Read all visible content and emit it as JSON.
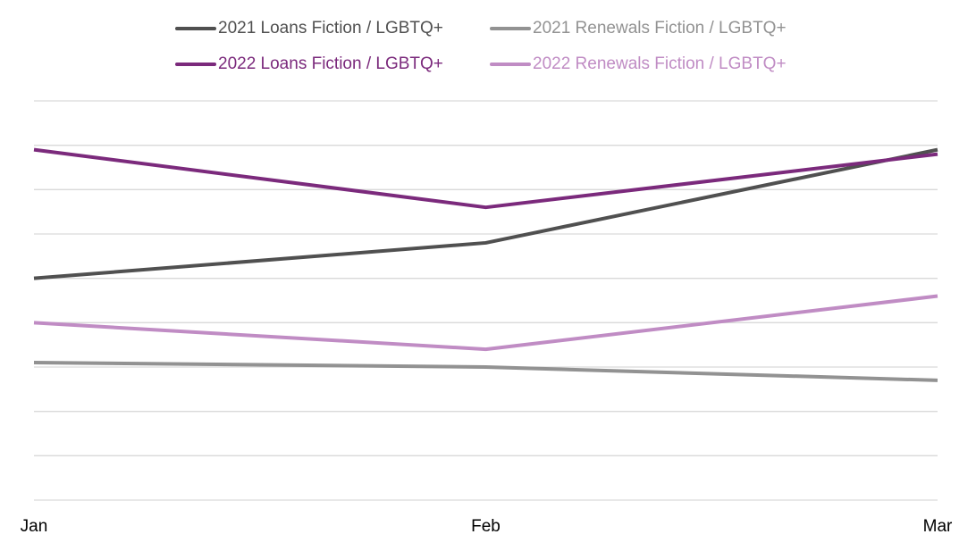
{
  "chart_data": {
    "type": "line",
    "categories": [
      "Jan",
      "Feb",
      "Mar"
    ],
    "series": [
      {
        "name": "2021 Loans Fiction / LGBTQ+",
        "color": "#505050",
        "values": [
          5.0,
          5.8,
          7.9
        ]
      },
      {
        "name": "2021 Renewals Fiction / LGBTQ+",
        "color": "#929292",
        "values": [
          3.1,
          3.0,
          2.7
        ]
      },
      {
        "name": "2022 Loans Fiction / LGBTQ+",
        "color": "#7b2a7c",
        "values": [
          7.9,
          6.6,
          7.8
        ]
      },
      {
        "name": "2022 Renewals Fiction / LGBTQ+",
        "color": "#c08cc4",
        "values": [
          4.0,
          3.4,
          4.6
        ]
      }
    ],
    "ylim": [
      0,
      9
    ],
    "yticks": [
      0,
      1,
      2,
      3,
      4,
      5,
      6,
      7,
      8,
      9
    ],
    "show_tick_labels": false,
    "grid": true,
    "legend": "top"
  }
}
